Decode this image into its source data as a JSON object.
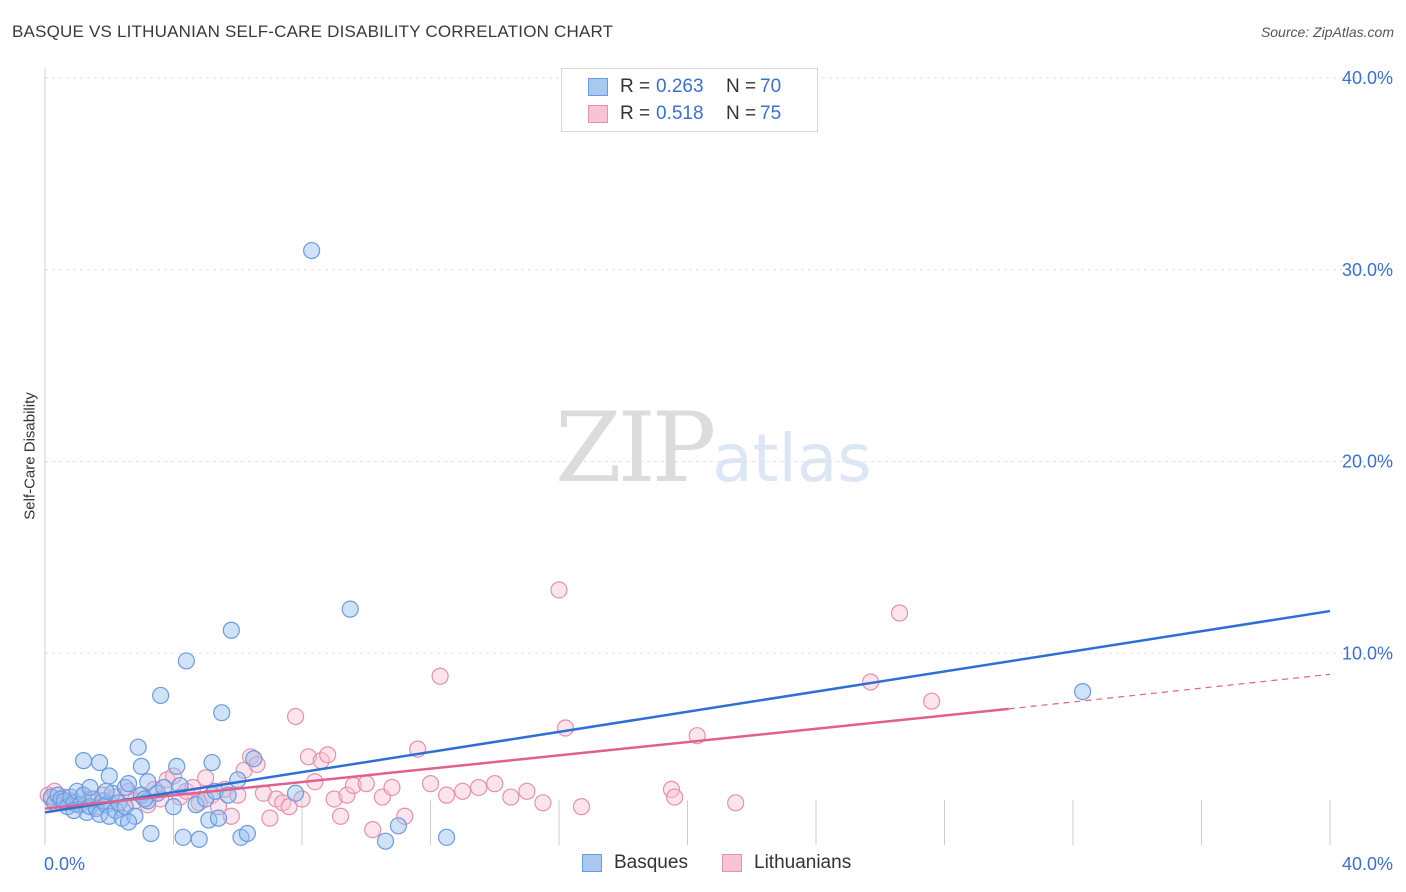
{
  "header": {
    "title": "BASQUE VS LITHUANIAN SELF-CARE DISABILITY CORRELATION CHART",
    "source": "Source: ZipAtlas.com"
  },
  "watermark": {
    "part1": "ZIP",
    "part2": "atlas"
  },
  "legend": {
    "rows": [
      {
        "r_label": "R =",
        "r_value": "0.263",
        "n_label": "N =",
        "n_value": "70",
        "color": "#a8c8f0",
        "border": "#6a9be0"
      },
      {
        "r_label": "R =",
        "r_value": "0.518",
        "n_label": "N =",
        "n_value": "75",
        "color": "#f8c3d4",
        "border": "#e890ac"
      }
    ]
  },
  "bottom_legend": {
    "items": [
      {
        "label": "Basques",
        "color": "#a8c8f0",
        "border": "#6a9be0"
      },
      {
        "label": "Lithuanians",
        "color": "#f8c3d4",
        "border": "#e890ac"
      }
    ]
  },
  "chart_data": {
    "type": "scatter",
    "title": "BASQUE VS LITHUANIAN SELF-CARE DISABILITY CORRELATION CHART",
    "xlabel": "",
    "ylabel": "Self-Care Disability",
    "xlim": [
      0,
      40
    ],
    "ylim": [
      0,
      40
    ],
    "x_tick_labels": [
      "0.0%",
      "40.0%"
    ],
    "y_tick_labels": [
      "10.0%",
      "20.0%",
      "30.0%",
      "40.0%"
    ],
    "y_ticks": [
      10,
      20,
      30,
      40
    ],
    "grid": true,
    "legend_position": "top-center",
    "series": [
      {
        "name": "Basques",
        "color": "#6a9be0",
        "fill": "rgba(150,190,240,0.45)",
        "trend": {
          "x": [
            0,
            40
          ],
          "y": [
            1.7,
            12.2
          ],
          "color": "#2e6fd6"
        },
        "points": [
          [
            0.2,
            2.5
          ],
          [
            0.3,
            2.2
          ],
          [
            0.4,
            2.6
          ],
          [
            0.5,
            2.4
          ],
          [
            0.6,
            2.3
          ],
          [
            0.7,
            2.0
          ],
          [
            0.8,
            2.5
          ],
          [
            0.9,
            2.2
          ],
          [
            1.0,
            2.8
          ],
          [
            1.1,
            2.1
          ],
          [
            1.2,
            2.6
          ],
          [
            1.3,
            1.7
          ],
          [
            1.4,
            2.0
          ],
          [
            1.5,
            2.4
          ],
          [
            1.6,
            1.9
          ],
          [
            1.7,
            1.6
          ],
          [
            1.8,
            2.3
          ],
          [
            1.9,
            2.1
          ],
          [
            2.0,
            1.5
          ],
          [
            2.1,
            2.7
          ],
          [
            2.2,
            1.8
          ],
          [
            2.3,
            2.2
          ],
          [
            2.4,
            1.4
          ],
          [
            2.5,
            2.0
          ],
          [
            1.2,
            4.4
          ],
          [
            1.7,
            4.3
          ],
          [
            2.0,
            3.6
          ],
          [
            2.5,
            3.0
          ],
          [
            2.6,
            3.2
          ],
          [
            2.8,
            1.5
          ],
          [
            3.0,
            2.6
          ],
          [
            3.2,
            2.3
          ],
          [
            2.9,
            5.1
          ],
          [
            3.0,
            4.1
          ],
          [
            3.2,
            3.3
          ],
          [
            3.1,
            2.4
          ],
          [
            3.3,
            0.6
          ],
          [
            3.5,
            2.7
          ],
          [
            3.6,
            7.8
          ],
          [
            3.7,
            3.0
          ],
          [
            4.0,
            2.0
          ],
          [
            4.1,
            4.1
          ],
          [
            4.2,
            3.1
          ],
          [
            4.3,
            0.4
          ],
          [
            4.4,
            9.6
          ],
          [
            4.7,
            2.1
          ],
          [
            4.8,
            0.3
          ],
          [
            5.0,
            2.4
          ],
          [
            5.1,
            1.3
          ],
          [
            5.2,
            4.3
          ],
          [
            5.3,
            2.8
          ],
          [
            5.4,
            1.4
          ],
          [
            5.5,
            6.9
          ],
          [
            5.7,
            2.6
          ],
          [
            5.8,
            11.2
          ],
          [
            6.0,
            3.4
          ],
          [
            6.1,
            0.4
          ],
          [
            6.3,
            0.6
          ],
          [
            6.5,
            4.5
          ],
          [
            7.8,
            2.7
          ],
          [
            8.3,
            31.0
          ],
          [
            9.5,
            12.3
          ],
          [
            10.6,
            0.2
          ],
          [
            11.0,
            1.0
          ],
          [
            12.5,
            0.4
          ],
          [
            32.3,
            8.0
          ],
          [
            1.4,
            3.0
          ],
          [
            2.6,
            1.2
          ],
          [
            1.9,
            2.8
          ],
          [
            0.9,
            1.8
          ]
        ]
      },
      {
        "name": "Lithuanians",
        "color": "#e890ac",
        "fill": "rgba(248,195,212,0.45)",
        "trend": {
          "x": [
            0,
            30
          ],
          "y": [
            1.9,
            7.1
          ],
          "dash_x": [
            30,
            40
          ],
          "dash_y": [
            7.1,
            8.9
          ],
          "color": "#e0608e"
        },
        "points": [
          [
            0.1,
            2.6
          ],
          [
            0.2,
            2.4
          ],
          [
            0.3,
            2.8
          ],
          [
            0.5,
            2.2
          ],
          [
            0.6,
            2.5
          ],
          [
            0.8,
            2.3
          ],
          [
            1.0,
            2.1
          ],
          [
            1.2,
            2.6
          ],
          [
            1.4,
            2.4
          ],
          [
            1.6,
            2.0
          ],
          [
            1.8,
            2.6
          ],
          [
            2.0,
            2.2
          ],
          [
            2.2,
            2.5
          ],
          [
            2.4,
            1.9
          ],
          [
            2.6,
            2.8
          ],
          [
            2.8,
            2.3
          ],
          [
            3.0,
            2.6
          ],
          [
            3.2,
            2.1
          ],
          [
            3.4,
            2.9
          ],
          [
            3.6,
            2.4
          ],
          [
            3.8,
            3.4
          ],
          [
            4.0,
            3.6
          ],
          [
            4.2,
            2.5
          ],
          [
            4.4,
            2.8
          ],
          [
            4.6,
            3.0
          ],
          [
            4.8,
            2.2
          ],
          [
            5.0,
            3.5
          ],
          [
            5.2,
            2.6
          ],
          [
            5.4,
            2.0
          ],
          [
            5.6,
            2.9
          ],
          [
            5.8,
            1.5
          ],
          [
            6.0,
            2.6
          ],
          [
            6.2,
            3.9
          ],
          [
            6.4,
            4.6
          ],
          [
            6.6,
            4.2
          ],
          [
            6.8,
            2.7
          ],
          [
            7.0,
            1.4
          ],
          [
            7.2,
            2.4
          ],
          [
            7.4,
            2.2
          ],
          [
            7.6,
            2.0
          ],
          [
            7.8,
            6.7
          ],
          [
            8.0,
            2.4
          ],
          [
            8.2,
            4.6
          ],
          [
            8.4,
            3.3
          ],
          [
            8.6,
            4.4
          ],
          [
            8.8,
            4.7
          ],
          [
            9.0,
            2.4
          ],
          [
            9.2,
            1.5
          ],
          [
            9.4,
            2.6
          ],
          [
            9.6,
            3.1
          ],
          [
            10.0,
            3.2
          ],
          [
            10.2,
            0.8
          ],
          [
            10.5,
            2.5
          ],
          [
            10.8,
            3.0
          ],
          [
            11.2,
            1.5
          ],
          [
            11.6,
            5.0
          ],
          [
            12.0,
            3.2
          ],
          [
            12.3,
            8.8
          ],
          [
            12.5,
            2.6
          ],
          [
            13.0,
            2.8
          ],
          [
            13.5,
            3.0
          ],
          [
            14.0,
            3.2
          ],
          [
            14.5,
            2.5
          ],
          [
            15.0,
            2.8
          ],
          [
            15.5,
            2.2
          ],
          [
            16.0,
            13.3
          ],
          [
            16.2,
            6.1
          ],
          [
            16.7,
            2.0
          ],
          [
            19.5,
            2.9
          ],
          [
            19.6,
            2.5
          ],
          [
            20.3,
            5.7
          ],
          [
            21.5,
            2.2
          ],
          [
            25.7,
            8.5
          ],
          [
            26.6,
            12.1
          ],
          [
            27.6,
            7.5
          ]
        ]
      }
    ]
  }
}
